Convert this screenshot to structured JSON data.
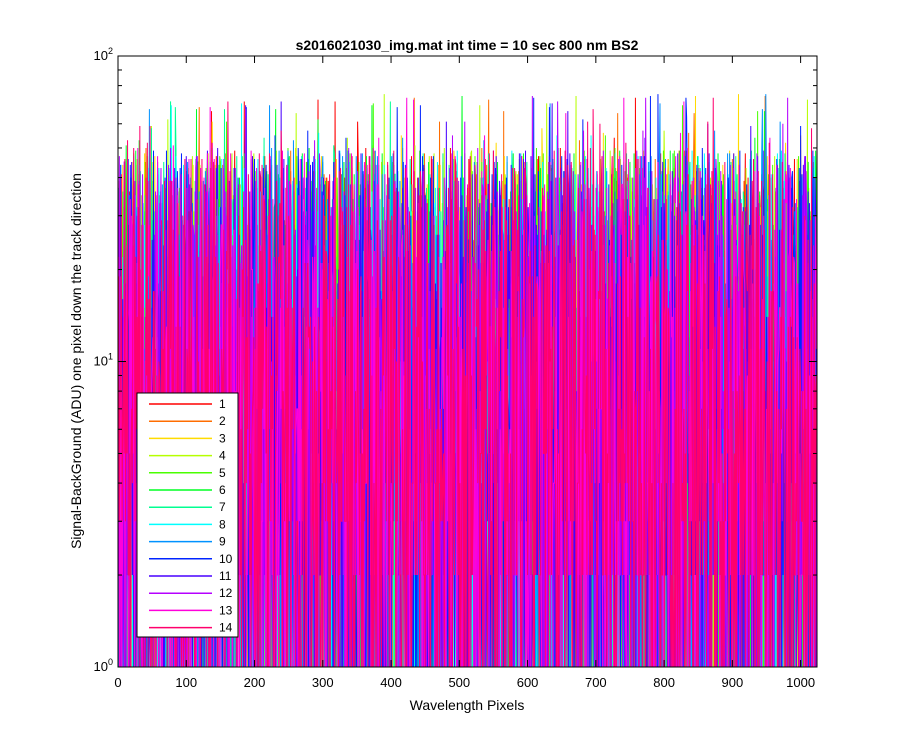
{
  "chart_data": {
    "type": "line",
    "title": "s2016021030_img.mat int time = 10 sec  800 nm BS2",
    "xlabel": "Wavelength Pixels",
    "ylabel": "Signal-BackGround (ADU) one pixel down the track direction",
    "xlim": [
      0,
      1024
    ],
    "ylim": [
      1,
      100
    ],
    "yscale": "log",
    "x_ticks": [
      0,
      100,
      200,
      300,
      400,
      500,
      600,
      700,
      800,
      900,
      1000
    ],
    "y_ticks": [
      1,
      10,
      100
    ],
    "y_tick_labels": [
      {
        "base": "10",
        "exp": "0"
      },
      {
        "base": "10",
        "exp": "1"
      },
      {
        "base": "10",
        "exp": "2"
      }
    ],
    "grid": false,
    "legend_position": "lower-left",
    "n_points": 1024,
    "value_distribution": {
      "description": "integer ADU counts per pixel, mostly between 1 and 50, occasional peaks to about 75",
      "typical_min": 1,
      "typical_max": 50,
      "peak_max": 75
    },
    "series": [
      {
        "name": "1",
        "color": "#ff0000"
      },
      {
        "name": "2",
        "color": "#ff6d00"
      },
      {
        "name": "3",
        "color": "#ffdb00"
      },
      {
        "name": "4",
        "color": "#b6ff00"
      },
      {
        "name": "5",
        "color": "#49ff00"
      },
      {
        "name": "6",
        "color": "#00ff24"
      },
      {
        "name": "7",
        "color": "#00ff92"
      },
      {
        "name": "8",
        "color": "#00ffff"
      },
      {
        "name": "9",
        "color": "#0092ff"
      },
      {
        "name": "10",
        "color": "#0024ff"
      },
      {
        "name": "11",
        "color": "#4900ff"
      },
      {
        "name": "12",
        "color": "#b600ff"
      },
      {
        "name": "13",
        "color": "#ff00db"
      },
      {
        "name": "14",
        "color": "#ff006d"
      }
    ]
  }
}
